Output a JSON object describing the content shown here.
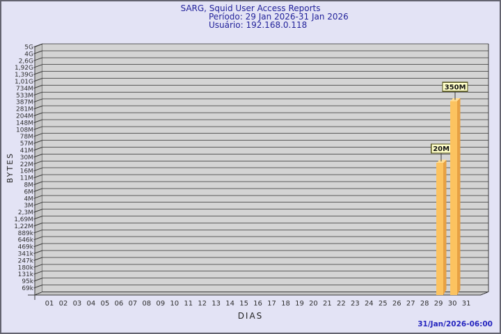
{
  "header": {
    "title": "SARG, Squid User Access Reports",
    "period": "Período: 29 Jan 2026-31 Jan 2026",
    "user": "Usuário: 192.168.0.118",
    "text_color": "#22229a"
  },
  "footer": {
    "timestamp": "31/Jan/2026-06:00",
    "text_color": "#2626bf"
  },
  "chart_data": {
    "type": "bar",
    "title": "SARG, Squid User Access Reports",
    "subtitle_period": "Período: 29 Jan 2026-31 Jan 2026",
    "subtitle_user": "Usuário: 192.168.0.118",
    "xlabel": "DIAS",
    "ylabel": "BYTES",
    "y_scale": "log",
    "y_axis_top_value": 5000000000,
    "y_axis_bottom_tick_value": 69000,
    "y_tick_labels": [
      "5G",
      "4G",
      "2,6G",
      "1,92G",
      "1,39G",
      "1,01G",
      "734M",
      "533M",
      "387M",
      "281M",
      "204M",
      "148M",
      "108M",
      "78M",
      "57M",
      "41M",
      "30M",
      "22M",
      "16M",
      "11M",
      "8M",
      "6M",
      "4M",
      "3M",
      "2,3M",
      "1,69M",
      "1,22M",
      "889k",
      "646k",
      "469k",
      "341k",
      "247k",
      "180k",
      "131k",
      "95k",
      "69k"
    ],
    "x_tick_labels": [
      "01",
      "02",
      "03",
      "04",
      "05",
      "06",
      "07",
      "08",
      "09",
      "10",
      "11",
      "12",
      "13",
      "14",
      "15",
      "16",
      "17",
      "18",
      "19",
      "20",
      "21",
      "22",
      "23",
      "24",
      "25",
      "26",
      "27",
      "28",
      "29",
      "30",
      "31"
    ],
    "bars": [
      {
        "day": "29",
        "bytes": 20000000,
        "value_label": "20M"
      },
      {
        "day": "30",
        "bytes": 350000000,
        "value_label": "350M"
      }
    ],
    "grid": true,
    "legend": "none",
    "colors": {
      "plot_bg": "#d4d4d4",
      "wall": "#c5c5c5",
      "floor": "#c5c5c5",
      "gridline": "#5a5a5a",
      "axis_line": "#3a3a3a",
      "tick_text": "#2e2e2e",
      "bar_front": "#fcc360",
      "bar_side": "#e7a143",
      "bar_top": "#ffdd94",
      "annotation_bg": "#ffffc8",
      "annotation_border": "#50501a",
      "annotation_text": "#111111"
    }
  }
}
